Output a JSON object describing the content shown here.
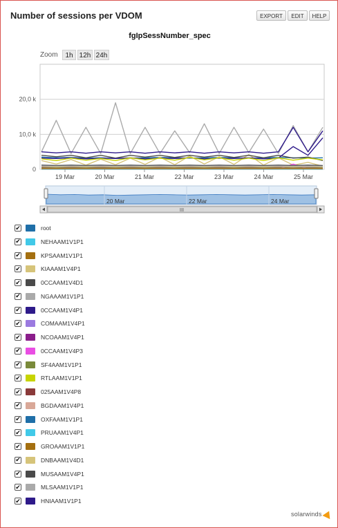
{
  "widget": {
    "title": "Number of sessions per VDOM",
    "buttons": {
      "export": "EXPORT",
      "edit": "EDIT",
      "help": "HELP"
    }
  },
  "zoom": {
    "label": "Zoom",
    "options": [
      "1h",
      "12h",
      "24h"
    ]
  },
  "chart_data": {
    "type": "line",
    "title": "fgIpSessNumber_spec",
    "xlabel": "",
    "ylabel": "",
    "x_ticks": [
      "19 Mar",
      "20 Mar",
      "21 Mar",
      "22 Mar",
      "23 Mar",
      "24 Mar",
      "25 Mar"
    ],
    "y_ticks": [
      "0",
      "10,0 k",
      "20,0 k"
    ],
    "y_tick_values": [
      0,
      10000,
      20000
    ],
    "ylim": [
      0,
      30000
    ],
    "grid": true,
    "legend": "below",
    "navigator_ticks": [
      "20 Mar",
      "22 Mar",
      "24 Mar"
    ],
    "series": [
      {
        "name": "root",
        "color": "#1f6fa8",
        "values": [
          3500,
          3300,
          3400,
          3200,
          3300,
          3100,
          3200,
          3300,
          3400,
          3300,
          3200,
          3300,
          3400,
          3300,
          3200,
          3300,
          3400,
          3300,
          3200,
          3300
        ]
      },
      {
        "name": "NEHAAM1V1P1",
        "color": "#41c9e8",
        "values": [
          200,
          200,
          200,
          200,
          200,
          200,
          200,
          200,
          200,
          200,
          200,
          200,
          200,
          200,
          200,
          200,
          200,
          200,
          200,
          200
        ]
      },
      {
        "name": "KPSAAM1V1P1",
        "color": "#a46f10",
        "values": [
          600,
          600,
          700,
          600,
          600,
          700,
          600,
          600,
          700,
          600,
          600,
          700,
          600,
          600,
          700,
          600,
          600,
          700,
          900,
          800
        ]
      },
      {
        "name": "KIAAAM1V4P1",
        "color": "#d6c47a",
        "values": [
          2500,
          1500,
          2800,
          1200,
          2900,
          1300,
          3200,
          1400,
          3500,
          1300,
          3800,
          1500,
          3600,
          1400,
          4200,
          1200,
          3300,
          1200,
          2000,
          900
        ]
      },
      {
        "name": "0CCAAM1V4D1",
        "color": "#4a4a4a",
        "values": [
          4000,
          3600,
          4000,
          3300,
          4000,
          3200,
          4000,
          3500,
          4000,
          3400,
          4000,
          3500,
          4000,
          3400,
          4000,
          3300,
          4000,
          3200,
          3500,
          2500
        ]
      },
      {
        "name": "NGAAAM1V1P1",
        "color": "#aaaaaa",
        "values": [
          5000,
          14000,
          4500,
          12000,
          4500,
          19000,
          4500,
          12000,
          4500,
          11000,
          4800,
          13000,
          4500,
          12000,
          4800,
          11500,
          4500,
          12500,
          5000,
          12000
        ]
      },
      {
        "name": "0CCAAM1V4P1",
        "color": "#2e1a8a",
        "values": [
          3200,
          3100,
          3300,
          3000,
          3200,
          3100,
          3300,
          3000,
          3200,
          3100,
          3300,
          3000,
          3200,
          3100,
          3300,
          3000,
          3200,
          6500,
          4000,
          9000
        ]
      },
      {
        "name": "COMAAM1V4P1",
        "color": "#9b7ae0",
        "values": [
          300,
          300,
          300,
          300,
          300,
          300,
          300,
          300,
          300,
          300,
          300,
          300,
          300,
          300,
          300,
          300,
          300,
          300,
          300,
          300
        ]
      },
      {
        "name": "NCOAAM1V4P1",
        "color": "#8b1e8b",
        "values": [
          500,
          500,
          500,
          500,
          500,
          500,
          500,
          500,
          500,
          500,
          500,
          500,
          500,
          500,
          500,
          500,
          500,
          500,
          500,
          500
        ]
      },
      {
        "name": "0CCAAM1V4P3",
        "color": "#e94ee3",
        "values": [
          100,
          100,
          100,
          100,
          100,
          100,
          100,
          100,
          100,
          100,
          100,
          100,
          100,
          100,
          100,
          100,
          100,
          1500,
          200,
          100
        ]
      },
      {
        "name": "SF4AAM1V1P1",
        "color": "#7a8a3a",
        "values": [
          400,
          400,
          400,
          400,
          400,
          400,
          400,
          400,
          400,
          400,
          400,
          400,
          400,
          400,
          400,
          400,
          400,
          400,
          400,
          400
        ]
      },
      {
        "name": "RTLAAM1V1P1",
        "color": "#c7d400",
        "values": [
          3000,
          2500,
          3200,
          2600,
          3100,
          2500,
          3300,
          2700,
          3200,
          2600,
          3400,
          2700,
          3300,
          2600,
          3200,
          2500,
          3300,
          2600,
          3200,
          2700
        ]
      },
      {
        "name": "025AAM1V4P8",
        "color": "#8a3a3a",
        "values": [
          150,
          150,
          150,
          150,
          150,
          150,
          150,
          150,
          150,
          150,
          150,
          150,
          150,
          150,
          150,
          150,
          150,
          150,
          150,
          150
        ]
      },
      {
        "name": "BGDAAM1V4P1",
        "color": "#d9a898",
        "values": [
          250,
          250,
          250,
          250,
          250,
          250,
          250,
          250,
          250,
          250,
          250,
          250,
          250,
          250,
          250,
          250,
          250,
          250,
          250,
          250
        ]
      },
      {
        "name": "OXFAAM1V1P1",
        "color": "#1f6fa8",
        "values": [
          100,
          100,
          100,
          100,
          100,
          100,
          100,
          100,
          100,
          100,
          100,
          100,
          100,
          100,
          100,
          100,
          100,
          100,
          100,
          100
        ]
      },
      {
        "name": "PRUAAM1V4P1",
        "color": "#41c9e8",
        "values": [
          100,
          100,
          100,
          100,
          100,
          100,
          100,
          100,
          100,
          100,
          100,
          100,
          100,
          100,
          100,
          100,
          100,
          100,
          100,
          100
        ]
      },
      {
        "name": "GROAAM1V1P1",
        "color": "#a46f10",
        "values": [
          200,
          200,
          200,
          200,
          200,
          200,
          200,
          200,
          200,
          200,
          200,
          200,
          200,
          200,
          200,
          200,
          200,
          200,
          200,
          200
        ]
      },
      {
        "name": "DNBAAM1V4D1",
        "color": "#d6c47a",
        "values": [
          800,
          700,
          800,
          700,
          800,
          700,
          800,
          700,
          800,
          700,
          800,
          700,
          800,
          700,
          800,
          700,
          800,
          700,
          800,
          700
        ]
      },
      {
        "name": "MUSAAM1V4P1",
        "color": "#4a4a4a",
        "values": [
          1200,
          1100,
          1200,
          1100,
          1200,
          1100,
          1200,
          1100,
          1200,
          1100,
          1200,
          1100,
          1200,
          1100,
          1200,
          1100,
          1200,
          1100,
          1200,
          1100
        ]
      },
      {
        "name": "MLSAAM1V1P1",
        "color": "#aaaaaa",
        "values": [
          900,
          900,
          900,
          900,
          900,
          900,
          900,
          900,
          900,
          900,
          900,
          900,
          900,
          900,
          900,
          900,
          900,
          900,
          900,
          900
        ]
      },
      {
        "name": "HNIAAM1V1P1",
        "color": "#2e1a8a",
        "values": [
          5000,
          4700,
          5000,
          4600,
          5000,
          4700,
          5000,
          4600,
          5000,
          4700,
          5000,
          4600,
          5000,
          4700,
          5000,
          4600,
          5000,
          12000,
          5000,
          11000
        ]
      }
    ]
  },
  "logo": {
    "text": "solarwinds"
  }
}
